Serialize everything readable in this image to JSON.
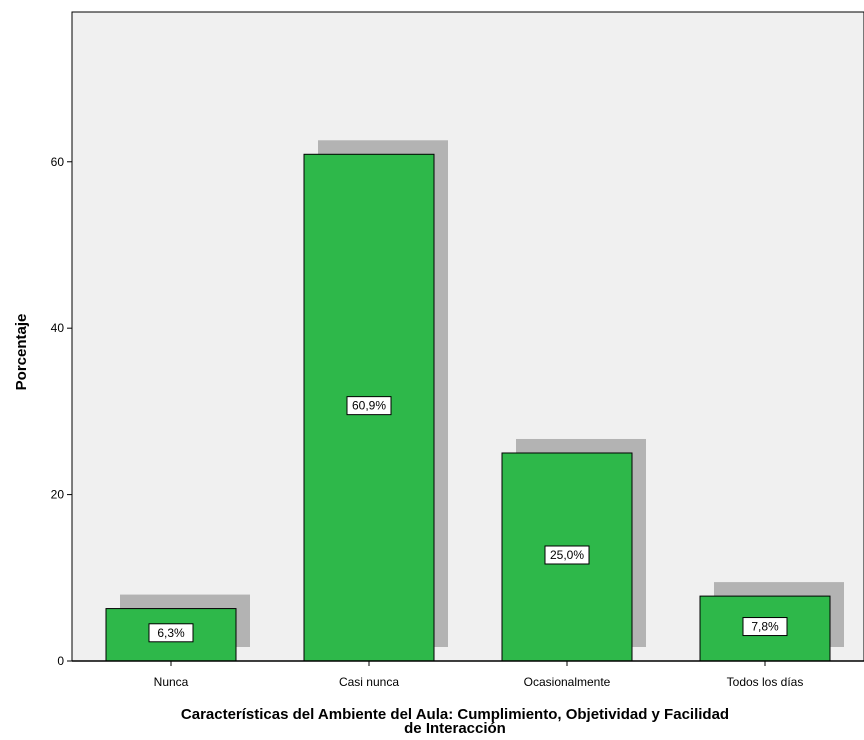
{
  "chart_data": {
    "type": "bar",
    "categories": [
      "Nunca",
      "Casi nunca",
      "Ocasionalmente",
      "Todos los días"
    ],
    "values": [
      6.3,
      60.9,
      25.0,
      7.8
    ],
    "data_labels": [
      "6,3%",
      "60,9%",
      "25,0%",
      "7,8%"
    ],
    "ylabel": "Porcentaje",
    "xlabel_lines": [
      "Características del Ambiente del Aula: Cumplimiento, Objetividad y Facilidad",
      "de Interacción"
    ],
    "ylim": [
      0,
      78
    ],
    "yticks": [
      0,
      20,
      40,
      60
    ],
    "grid": false,
    "colors": {
      "bar": "#2eb84a",
      "shadow": "#b3b3b3",
      "plot_bg": "#f0f0f0",
      "border": "#000000"
    }
  }
}
